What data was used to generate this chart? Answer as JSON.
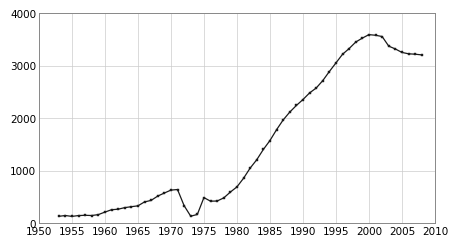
{
  "years": [
    1953,
    1954,
    1955,
    1956,
    1957,
    1958,
    1959,
    1960,
    1961,
    1962,
    1963,
    1964,
    1965,
    1966,
    1967,
    1968,
    1969,
    1970,
    1971,
    1972,
    1973,
    1974,
    1975,
    1976,
    1977,
    1978,
    1979,
    1980,
    1981,
    1982,
    1983,
    1984,
    1985,
    1986,
    1987,
    1988,
    1989,
    1990,
    1991,
    1992,
    1993,
    1994,
    1995,
    1996,
    1997,
    1998,
    1999,
    2000,
    2001,
    2002,
    2003,
    2004,
    2005,
    2006,
    2007,
    2008
  ],
  "values": [
    131,
    147,
    130,
    146,
    151,
    147,
    164,
    212,
    257,
    267,
    297,
    315,
    331,
    406,
    435,
    517,
    575,
    631,
    642,
    334,
    134,
    167,
    488,
    420,
    423,
    482,
    593,
    692,
    856,
    1050,
    1209,
    1405,
    1575,
    1781,
    1967,
    2117,
    2243,
    2356,
    2482,
    2575,
    2716,
    2890,
    3054,
    3219,
    3328,
    3452,
    3527,
    3593,
    3581,
    3557,
    3374,
    3320,
    3254,
    3228,
    3220,
    3207
  ],
  "xlim": [
    1950,
    2010
  ],
  "ylim": [
    0,
    4000
  ],
  "xticks": [
    1950,
    1955,
    1960,
    1965,
    1970,
    1975,
    1980,
    1985,
    1990,
    1995,
    2000,
    2005,
    2010
  ],
  "yticks": [
    0,
    1000,
    2000,
    3000,
    4000
  ],
  "ytick_labels": [
    "0",
    "1000",
    "2000",
    "3000",
    "4000"
  ],
  "line_color": "#1a1a1a",
  "marker": "s",
  "marker_size": 2.0,
  "line_width": 0.9,
  "grid_color": "#cccccc",
  "background_color": "#ffffff",
  "axes_background": "#ffffff",
  "tick_fontsize": 7.5,
  "spine_color": "#888888"
}
